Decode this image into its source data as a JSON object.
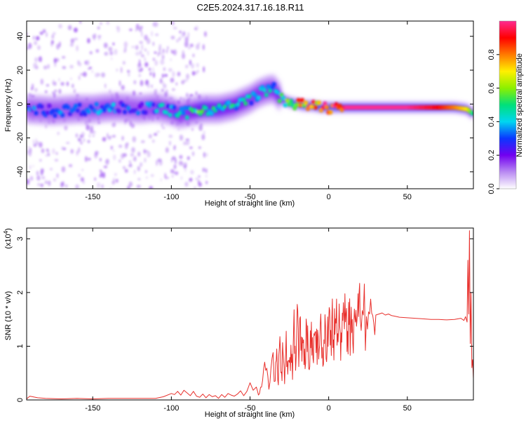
{
  "title": "C2E5.2024.317.16.18.R11",
  "colors": {
    "snr_line": "#e8302c",
    "axis": "#000000",
    "background": "#ffffff"
  },
  "chart_data": [
    {
      "type": "heatmap",
      "xlabel": "Height of straight line (km)",
      "ylabel": "Frequency (Hz)",
      "xlim": [
        -192,
        92
      ],
      "ylim": [
        -50,
        49
      ],
      "x_ticks": [
        -150,
        -100,
        -50,
        0,
        50
      ],
      "y_ticks": [
        -40,
        -20,
        0,
        20,
        40
      ],
      "x_tick_labels": [
        "-150",
        "-100",
        "-50",
        "0",
        "50"
      ],
      "y_tick_labels": [
        "-40",
        "-20",
        "0",
        "20",
        "40"
      ],
      "ridge": {
        "x": [
          -192,
          -175,
          -160,
          -150,
          -140,
          -130,
          -120,
          -110,
          -100,
          -95,
          -90,
          -85,
          -80,
          -75,
          -70,
          -65,
          -60,
          -55,
          -50,
          -45,
          -40,
          -35,
          -30,
          -25,
          -20,
          -15,
          -10,
          -5,
          0,
          10,
          20,
          30,
          40,
          50,
          60,
          70,
          80,
          88,
          92
        ],
        "y": [
          -3,
          -4,
          -3,
          -3,
          -2,
          -2,
          -3,
          -2,
          -4,
          -6,
          -5,
          -4,
          -3,
          -3,
          -3,
          -2,
          -1,
          1,
          3,
          6,
          8,
          9,
          3,
          1,
          0,
          -1,
          -1,
          -2,
          -2,
          -2,
          -2,
          -2,
          -2,
          -2,
          -2,
          -2,
          -2,
          -3,
          -6
        ],
        "amplitude": [
          0.35,
          0.35,
          0.35,
          0.35,
          0.4,
          0.35,
          0.35,
          0.4,
          0.45,
          0.45,
          0.45,
          0.5,
          0.6,
          0.55,
          0.55,
          0.5,
          0.5,
          0.5,
          0.45,
          0.45,
          0.45,
          0.45,
          0.55,
          0.65,
          0.8,
          0.85,
          0.9,
          0.95,
          0.95,
          1.0,
          1.0,
          1.0,
          1.0,
          1.0,
          0.95,
          0.9,
          0.8,
          0.7,
          0.45
        ]
      },
      "colorbar": {
        "label": "Normalized spectral amplitude",
        "range": [
          0.0,
          1.0
        ],
        "ticks": [
          0.0,
          0.2,
          0.4,
          0.6,
          0.8
        ],
        "tick_labels": [
          "0.0",
          "0.2",
          "0.4",
          "0.6",
          "0.8"
        ],
        "colormap": [
          "#ffffff",
          "#b98af2",
          "#7200f0",
          "#0a36ff",
          "#00d6f0",
          "#00e07a",
          "#8cf000",
          "#fff000",
          "#ff7a00",
          "#ff0000",
          "#ff2a90"
        ]
      }
    },
    {
      "type": "line",
      "xlabel": "Height of straight line (km)",
      "ylabel": "SNR (10 * v/v)",
      "multiplier_label": "(x10",
      "multiplier_exp": "4",
      "multiplier_close": ")",
      "xlim": [
        -192,
        92
      ],
      "ylim": [
        0,
        3.2
      ],
      "x_ticks": [
        -150,
        -100,
        -50,
        0,
        50
      ],
      "y_ticks": [
        0,
        1,
        2,
        3
      ],
      "x_tick_labels": [
        "-150",
        "-100",
        "-50",
        "0",
        "50"
      ],
      "y_tick_labels": [
        "0",
        "1",
        "2",
        "3"
      ],
      "series": [
        {
          "x": [
            -192,
            -190,
            -185,
            -180,
            -170,
            -160,
            -150,
            -140,
            -130,
            -120,
            -110,
            -105,
            -100,
            -98,
            -96,
            -94,
            -92,
            -90,
            -88,
            -86,
            -84,
            -82,
            -80,
            -78,
            -76,
            -74,
            -72,
            -70,
            -68,
            -66,
            -64,
            -62,
            -60,
            -58,
            -56,
            -54,
            -52,
            -50,
            -48,
            -46,
            -44,
            -42,
            -40,
            -38,
            -36,
            -34,
            -33,
            -32,
            -31,
            -30,
            -29,
            -28,
            -27,
            -26,
            -25,
            -24,
            -23,
            -22,
            -21,
            -20,
            -19,
            -18,
            -17,
            -16,
            -15,
            -14,
            -13,
            -12,
            -11,
            -10,
            -9,
            -8,
            -7,
            -6,
            -5,
            -4,
            -3,
            -2,
            -1,
            0,
            1,
            2,
            3,
            4,
            5,
            6,
            7,
            8,
            9,
            10,
            11,
            12,
            13,
            14,
            15,
            16,
            17,
            18,
            19,
            20,
            22,
            24,
            26,
            28,
            30,
            32,
            34,
            36,
            38,
            40,
            42,
            45,
            50,
            55,
            60,
            65,
            70,
            75,
            80,
            84,
            86,
            87,
            88,
            88.5,
            89,
            89.5,
            90,
            90.5,
            91,
            91.5,
            92
          ],
          "y": [
            0.02,
            0.07,
            0.04,
            0.03,
            0.02,
            0.03,
            0.02,
            0.03,
            0.03,
            0.03,
            0.03,
            0.06,
            0.12,
            0.1,
            0.16,
            0.09,
            0.18,
            0.13,
            0.08,
            0.16,
            0.07,
            0.05,
            0.11,
            0.04,
            0.1,
            0.06,
            0.08,
            0.03,
            0.1,
            0.05,
            0.12,
            0.09,
            0.07,
            0.11,
            0.17,
            0.08,
            0.16,
            0.32,
            0.18,
            0.24,
            0.12,
            0.36,
            0.55,
            0.2,
            0.78,
            0.35,
            0.95,
            0.28,
            1.18,
            0.52,
            0.88,
            0.3,
            1.28,
            0.48,
            0.7,
            1.02,
            0.38,
            1.68,
            0.55,
            1.78,
            0.62,
            1.55,
            0.72,
            1.12,
            0.58,
            1.4,
            0.82,
            0.62,
            1.45,
            0.78,
            1.2,
            0.88,
            1.3,
            0.95,
            1.6,
            0.98,
            1.12,
            1.35,
            0.92,
            1.45,
            1.02,
            1.5,
            1.12,
            1.22,
            1.88,
            1.08,
            1.38,
            1.25,
            1.48,
            1.32,
            1.6,
            1.28,
            1.4,
            1.35,
            1.5,
            1.42,
            1.45,
            1.48,
            1.55,
            1.52,
            1.58,
            1.55,
            1.6,
            1.57,
            1.58,
            1.6,
            1.62,
            1.58,
            1.6,
            1.57,
            1.56,
            1.54,
            1.53,
            1.52,
            1.51,
            1.5,
            1.5,
            1.49,
            1.5,
            1.52,
            1.48,
            1.55,
            1.45,
            2.6,
            1.6,
            3.15,
            1.05,
            2.0,
            0.6,
            0.75,
            0.4
          ]
        }
      ]
    }
  ]
}
